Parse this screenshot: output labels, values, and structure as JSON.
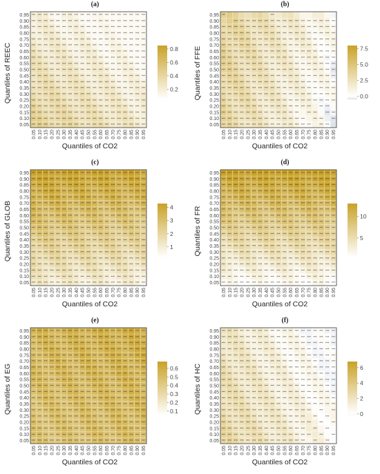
{
  "ticks": [
    "0.05",
    "0.10",
    "0.15",
    "0.20",
    "0.25",
    "0.30",
    "0.35",
    "0.40",
    "0.45",
    "0.50",
    "0.55",
    "0.60",
    "0.65",
    "0.70",
    "0.75",
    "0.80",
    "0.85",
    "0.90",
    "0.95"
  ],
  "colors": {
    "low": "#ffffff",
    "high": "#c9a227",
    "neg": "#dfe3ea",
    "border": "#333333"
  },
  "chart_data": [
    {
      "panel": "a",
      "type": "heatmap",
      "title": "(a)",
      "xlabel": "Quantiles of CO2",
      "ylabel": "Quantiles of REEC",
      "legend_ticks": [
        0.8,
        0.6,
        0.4,
        0.2
      ],
      "legend_range": [
        0.05,
        0.85
      ],
      "value_model": "decreases toward high CO2 and high REEC quantiles; maximum near low quantiles",
      "params": {
        "base": 0.45,
        "dx": -0.2,
        "dy": -0.25,
        "min": 0.1,
        "max": 0.85
      },
      "significance": "*** in nearly all cells"
    },
    {
      "panel": "b",
      "type": "heatmap",
      "title": "(b)",
      "xlabel": "Quantiles of CO2",
      "ylabel": "Quantiles of FFE",
      "legend_ticks": [
        7.5,
        5.0,
        2.5,
        0.0
      ],
      "legend_range": [
        -0.5,
        8
      ],
      "params": {
        "base": 3.5,
        "dx": -3.5,
        "dy": 0.5,
        "min": -0.5,
        "max": 8
      },
      "significance": "mostly ***; blank cells at top row and bottom-right"
    },
    {
      "panel": "c",
      "type": "heatmap",
      "title": "(c)",
      "xlabel": "Quantiles of CO2",
      "ylabel": "Quantiles of GLOB",
      "legend_ticks": [
        4,
        3,
        2,
        1
      ],
      "legend_range": [
        0.2,
        4.3
      ],
      "params": {
        "base": 1.2,
        "dx": -0.3,
        "dy": 3.2,
        "min": 0.1,
        "max": 4.3
      },
      "significance": "*** in nearly all cells"
    },
    {
      "panel": "d",
      "type": "heatmap",
      "title": "(d)",
      "xlabel": "Quantiles of CO2",
      "ylabel": "Quantiles of FR",
      "legend_ticks": [
        10,
        5
      ],
      "legend_range": [
        0.5,
        13
      ],
      "params": {
        "base": 1.0,
        "dx": 0.2,
        "dy": 12.0,
        "min": 0.5,
        "max": 13
      },
      "significance": "*** in nearly all cells"
    },
    {
      "panel": "e",
      "type": "heatmap",
      "title": "(e)",
      "xlabel": "Quantiles of CO2",
      "ylabel": "Quantiles of EG",
      "legend_ticks": [
        0.6,
        0.5,
        0.4,
        0.3,
        0.2,
        0.1
      ],
      "legend_range": [
        0.05,
        0.68
      ],
      "params": {
        "base": 0.45,
        "dx": 0.05,
        "dy": 0.1,
        "min": 0.05,
        "max": 0.68
      },
      "significance": "*** in nearly all cells"
    },
    {
      "panel": "f",
      "type": "heatmap",
      "title": "(f)",
      "xlabel": "Quantiles of CO2",
      "ylabel": "Quantiles of HC",
      "legend_ticks": [
        6,
        4,
        2,
        0
      ],
      "legend_range": [
        -0.2,
        6.8
      ],
      "params": {
        "base": 3.0,
        "dx": -2.5,
        "dy": -1.0,
        "min": -0.2,
        "max": 6.8
      },
      "significance": "mostly ***; blank cells lower right"
    }
  ]
}
